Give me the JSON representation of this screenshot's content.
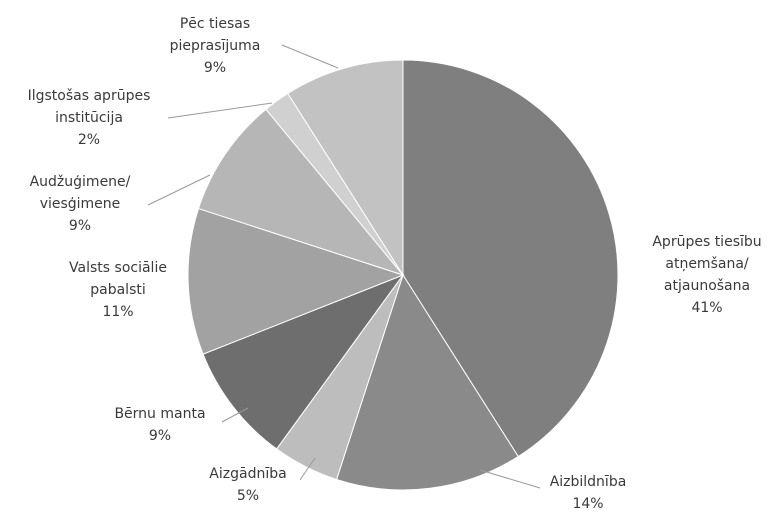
{
  "chart_data": {
    "type": "pie",
    "title": "",
    "unit": "%",
    "slices": [
      {
        "label_lines": [
          "Aprūpes tiesību",
          "atņemšana/",
          "atjaunošana"
        ],
        "value": 41,
        "value_label": "41%",
        "color": "#7f7f7f"
      },
      {
        "label_lines": [
          "Aizbildnība"
        ],
        "value": 14,
        "value_label": "14%",
        "color": "#8a8a8a"
      },
      {
        "label_lines": [
          "Aizgādnība"
        ],
        "value": 5,
        "value_label": "5%",
        "color": "#bdbdbd"
      },
      {
        "label_lines": [
          "Bērnu manta"
        ],
        "value": 9,
        "value_label": "9%",
        "color": "#6e6e6e"
      },
      {
        "label_lines": [
          "Valsts sociālie",
          "pabalsti"
        ],
        "value": 11,
        "value_label": "11%",
        "color": "#a2a2a2"
      },
      {
        "label_lines": [
          "Audžuģimene/",
          "viesģimene"
        ],
        "value": 9,
        "value_label": "9%",
        "color": "#b6b6b6"
      },
      {
        "label_lines": [
          "Ilgstošas aprūpes",
          "institūcija"
        ],
        "value": 2,
        "value_label": "2%",
        "color": "#d0d0d0"
      },
      {
        "label_lines": [
          "Pēc tiesas",
          "pieprasījuma"
        ],
        "value": 9,
        "value_label": "9%",
        "color": "#c2c2c2"
      }
    ]
  }
}
